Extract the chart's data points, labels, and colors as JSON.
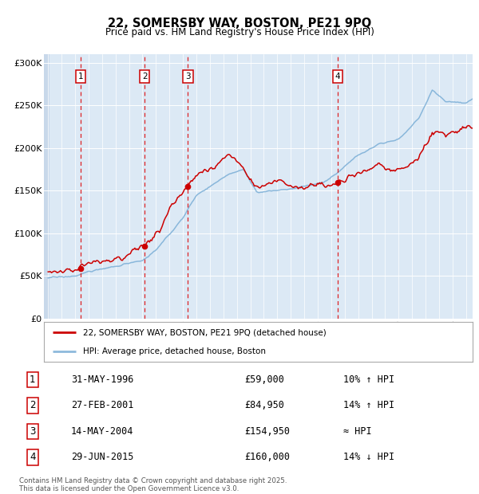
{
  "title1": "22, SOMERSBY WAY, BOSTON, PE21 9PQ",
  "title2": "Price paid vs. HM Land Registry's House Price Index (HPI)",
  "bg_color": "#dce9f5",
  "plot_bg": "#dce9f5",
  "hatch_color": "#c8d8ea",
  "grid_color": "#ffffff",
  "red_line_color": "#cc0000",
  "blue_line_color": "#7aaed6",
  "legend1": "22, SOMERSBY WAY, BOSTON, PE21 9PQ (detached house)",
  "legend2": "HPI: Average price, detached house, Boston",
  "transactions": [
    {
      "num": 1,
      "date": "31-MAY-1996",
      "price": 59000,
      "year": 1996.42,
      "hpi_text": "10% ↑ HPI"
    },
    {
      "num": 2,
      "date": "27-FEB-2001",
      "price": 84950,
      "year": 2001.16,
      "hpi_text": "14% ↑ HPI"
    },
    {
      "num": 3,
      "date": "14-MAY-2004",
      "price": 154950,
      "year": 2004.37,
      "hpi_text": "≈ HPI"
    },
    {
      "num": 4,
      "date": "29-JUN-2015",
      "price": 160000,
      "year": 2015.49,
      "hpi_text": "14% ↓ HPI"
    }
  ],
  "footer": "Contains HM Land Registry data © Crown copyright and database right 2025.\nThis data is licensed under the Open Government Licence v3.0.",
  "ylim": [
    0,
    310000
  ],
  "yticks": [
    0,
    50000,
    100000,
    150000,
    200000,
    250000,
    300000
  ],
  "xlim_start": 1993.7,
  "xlim_end": 2025.5
}
